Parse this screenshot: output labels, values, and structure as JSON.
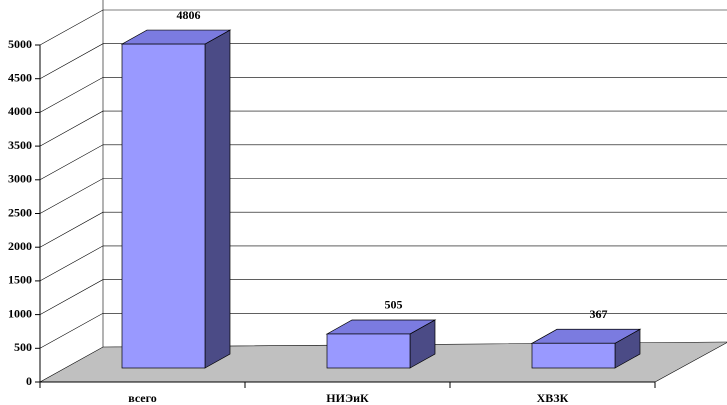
{
  "chart_data": {
    "type": "bar3d",
    "categories": [
      "всего",
      "НИЭиК",
      "ХВЗК"
    ],
    "values": [
      4806,
      505,
      367
    ],
    "colors": {
      "front": "#9999ff",
      "top": "#7b7be0",
      "side": "#4b4b86"
    },
    "ylim": [
      0,
      5000
    ],
    "yticks": [
      0,
      500,
      1000,
      1500,
      2000,
      2500,
      3000,
      3500,
      4000,
      4500,
      5000
    ],
    "grid": true
  }
}
